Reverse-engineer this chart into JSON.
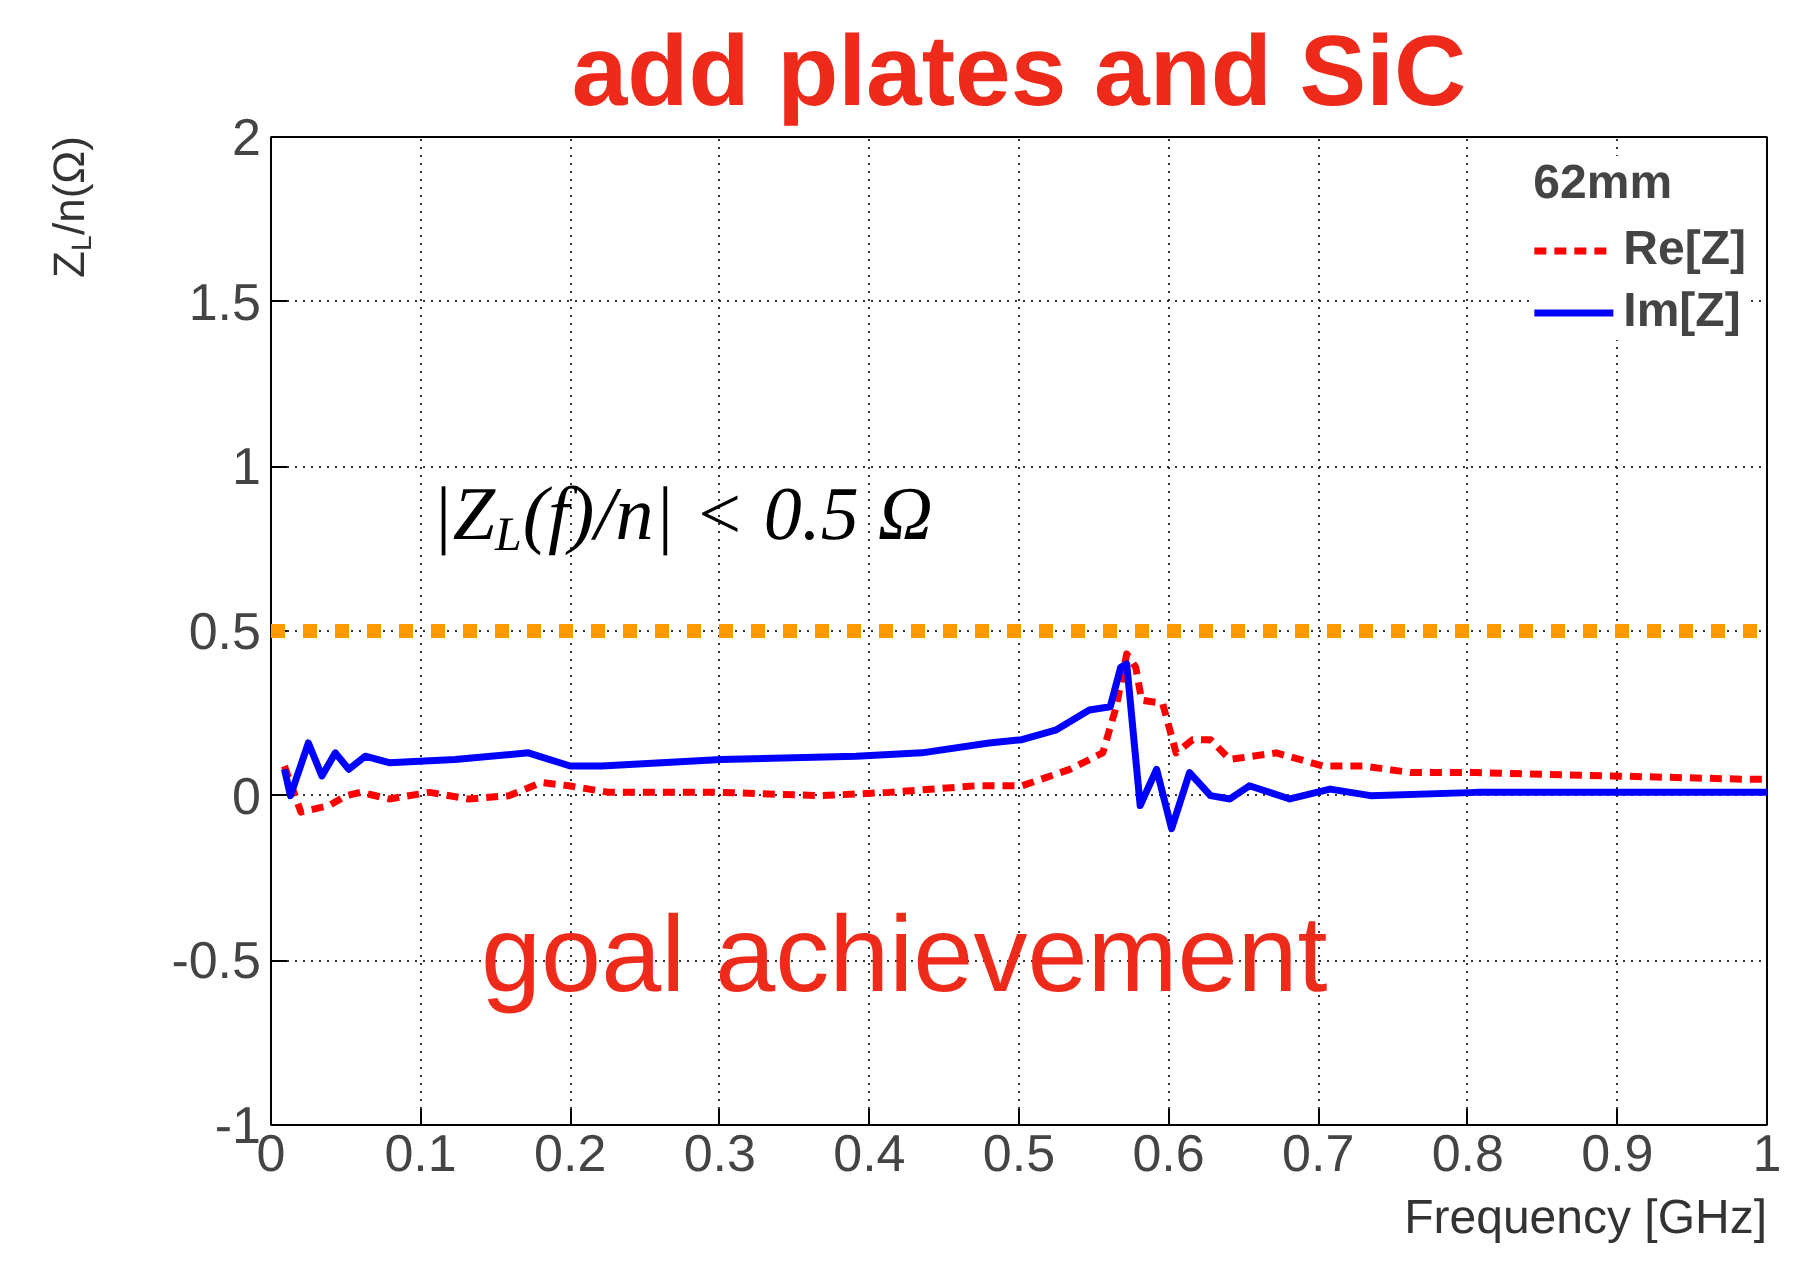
{
  "chart_data": {
    "type": "line",
    "title": "add plates and SiC",
    "xlabel": "Frequency [GHz]",
    "ylabel": "Z$_{L}$/n(Ω)",
    "legend_title": "62mm",
    "annotations": [
      "|Z$_{L}$(f)/n| < 0.5 Ω",
      "goal achievement"
    ],
    "xlim": [
      0,
      1
    ],
    "ylim": [
      -1,
      2
    ],
    "xticks": [
      0,
      0.1,
      0.2,
      0.3,
      0.4,
      0.5,
      0.6,
      0.7,
      0.8,
      0.9,
      1
    ],
    "yticks": [
      -1,
      -0.5,
      0,
      0.5,
      1,
      1.5,
      2
    ],
    "grid": true,
    "legend": "top right",
    "ref_lines": [
      {
        "axis": "y",
        "value": 0.5,
        "label": null,
        "color": "#ff9900",
        "line_style": "dotted"
      }
    ],
    "series": [
      {
        "name": "Re[Z]",
        "color": "#ff0000",
        "line_style": "dashed",
        "x": [
          0.009,
          0.02,
          0.039,
          0.05,
          0.06,
          0.079,
          0.106,
          0.132,
          0.159,
          0.181,
          0.199,
          0.226,
          0.301,
          0.368,
          0.413,
          0.471,
          0.502,
          0.534,
          0.556,
          0.565,
          0.572,
          0.578,
          0.582,
          0.596,
          0.605,
          0.616,
          0.628,
          0.641,
          0.672,
          0.703,
          0.73,
          0.762,
          0.806,
          0.896,
          0.984,
          1.0
        ],
        "values": [
          0.09,
          -0.05,
          -0.03,
          0,
          0.01,
          -0.01,
          0.01,
          -0.01,
          0,
          0.04,
          0.03,
          0.01,
          0.01,
          0,
          0.01,
          0.03,
          0.03,
          0.08,
          0.13,
          0.27,
          0.43,
          0.39,
          0.29,
          0.28,
          0.13,
          0.17,
          0.17,
          0.11,
          0.13,
          0.09,
          0.09,
          0.07,
          0.07,
          0.06,
          0.05,
          0.05
        ]
      },
      {
        "name": "Im[Z]",
        "color": "#0000ff",
        "line_style": "solid",
        "x": [
          0.009,
          0.013,
          0.025,
          0.034,
          0.043,
          0.052,
          0.063,
          0.079,
          0.123,
          0.172,
          0.2,
          0.221,
          0.301,
          0.391,
          0.435,
          0.48,
          0.502,
          0.525,
          0.547,
          0.561,
          0.568,
          0.572,
          0.581,
          0.592,
          0.602,
          0.614,
          0.628,
          0.641,
          0.654,
          0.681,
          0.708,
          0.735,
          0.806,
          0.984,
          1.0
        ],
        "values": [
          0.08,
          0.0,
          0.16,
          0.06,
          0.13,
          0.08,
          0.12,
          0.1,
          0.11,
          0.13,
          0.09,
          0.09,
          0.11,
          0.12,
          0.13,
          0.16,
          0.17,
          0.2,
          0.26,
          0.27,
          0.39,
          0.4,
          -0.03,
          0.08,
          -0.1,
          0.07,
          0.0,
          -0.01,
          0.03,
          -0.01,
          0.02,
          0.0,
          0.01,
          0.01,
          0.01
        ]
      }
    ]
  }
}
